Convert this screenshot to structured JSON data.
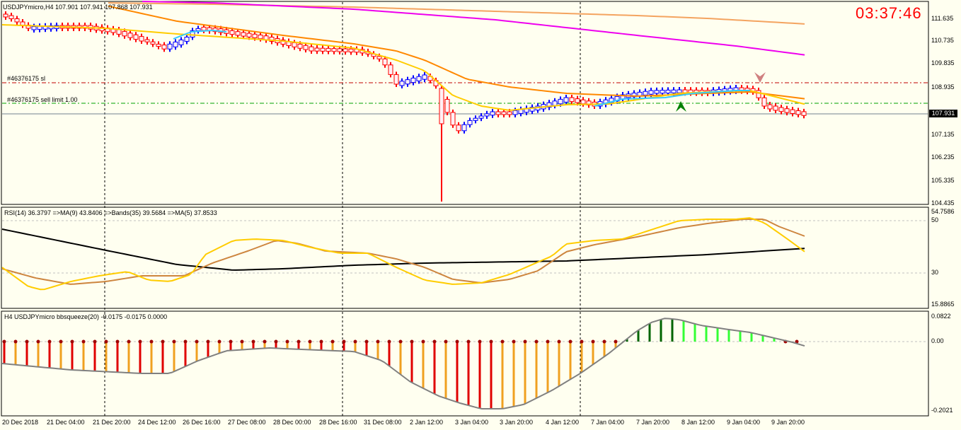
{
  "window": {
    "symbol_header": "USDJPYmicro,H4  107.901 107.941 107.868 107.931",
    "clock": "03:37:46",
    "current_price": "107.931"
  },
  "main_panel": {
    "price_labels": [
      "111.635",
      "110.735",
      "109.835",
      "108.935",
      "107.135",
      "106.235",
      "105.335",
      "104.435"
    ],
    "order_lines": [
      {
        "label": "#46376175 sl",
        "color": "#c00000",
        "style": "dash-dot"
      },
      {
        "label": "#46376175 sell limit 1.00",
        "color": "#00a000",
        "style": "dash-dot"
      }
    ]
  },
  "rsi_panel": {
    "header": "RSI(14) 36.3797  =>MA(9) 43.8406  =>Bands(35) 39.5684  =>MA(5) 37.8533",
    "scale_labels": [
      "54.7586",
      "50",
      "30",
      "15.8865"
    ]
  },
  "squeeze_panel": {
    "header": "H4 USDJPYmicro bbsqueeze(20) -0.0175 -0.0175 0.0000",
    "scale_labels": [
      "0.0822",
      "0.00",
      "-0.2021"
    ]
  },
  "time_axis": [
    "20 Dec 2018",
    "21 Dec 04:00",
    "21 Dec 20:00",
    "24 Dec 12:00",
    "26 Dec 16:00",
    "27 Dec 08:00",
    "28 Dec 00:00",
    "28 Dec 16:00",
    "31 Dec 08:00",
    "2 Jan 12:00",
    "3 Jan 04:00",
    "3 Jan 20:00",
    "4 Jan 12:00",
    "7 Jan 04:00",
    "7 Jan 20:00",
    "8 Jan 12:00",
    "9 Jan 04:00",
    "9 Jan 20:00"
  ],
  "colors": {
    "background": "#fffff0",
    "bull": "#0000ff",
    "bear": "#ff0000",
    "ma_fast": "#ffcc00",
    "ma_mid": "#ff8800",
    "ma_slow": "#f4a460",
    "ma_long": "#ee00ee",
    "trend_line": "#33ccff"
  }
}
